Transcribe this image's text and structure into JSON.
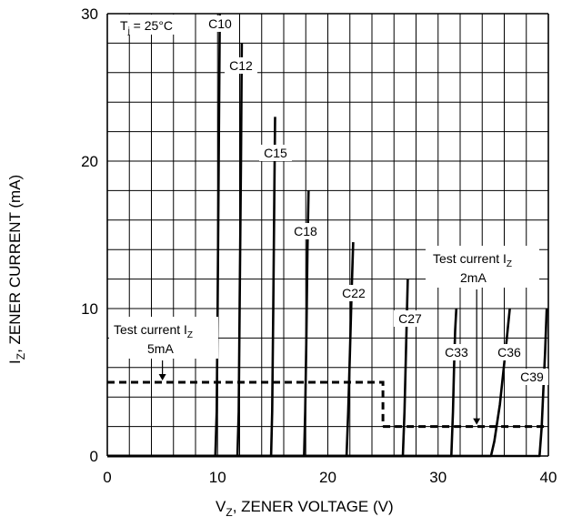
{
  "chart_data": {
    "type": "line",
    "title": "",
    "xlabel": "V",
    "xlabel_sub": "Z",
    "xlabel_rest": ", ZENER VOLTAGE (V)",
    "ylabel": "I",
    "ylabel_sub": "Z",
    "ylabel_rest": ", ZENER CURRENT (mA)",
    "xlim": [
      0,
      40
    ],
    "ylim": [
      0,
      30
    ],
    "x_ticks": [
      0,
      10,
      20,
      30,
      40
    ],
    "y_ticks": [
      0,
      10,
      20,
      30
    ],
    "grid": true,
    "condition": {
      "main": "T",
      "sub": "j",
      "rest": " = 25°C"
    },
    "series": [
      {
        "name": "C10",
        "values": [
          [
            9.8,
            0
          ],
          [
            9.92,
            3
          ],
          [
            10.0,
            10
          ],
          [
            10.1,
            20
          ],
          [
            10.2,
            30
          ]
        ]
      },
      {
        "name": "C12",
        "values": [
          [
            11.8,
            0
          ],
          [
            11.92,
            3
          ],
          [
            12.0,
            10
          ],
          [
            12.12,
            20
          ],
          [
            12.2,
            28
          ]
        ]
      },
      {
        "name": "C15",
        "values": [
          [
            14.85,
            0
          ],
          [
            14.95,
            3
          ],
          [
            15.05,
            10
          ],
          [
            15.15,
            18
          ],
          [
            15.22,
            23
          ]
        ]
      },
      {
        "name": "C18",
        "values": [
          [
            17.85,
            0
          ],
          [
            17.95,
            3
          ],
          [
            18.05,
            8
          ],
          [
            18.15,
            14
          ],
          [
            18.25,
            18
          ]
        ]
      },
      {
        "name": "C22",
        "values": [
          [
            21.7,
            0
          ],
          [
            21.85,
            3
          ],
          [
            22.0,
            7
          ],
          [
            22.15,
            11
          ],
          [
            22.3,
            14.5
          ]
        ]
      },
      {
        "name": "C27",
        "values": [
          [
            26.8,
            0
          ],
          [
            26.95,
            3
          ],
          [
            27.05,
            6
          ],
          [
            27.15,
            9
          ],
          [
            27.25,
            12
          ]
        ]
      },
      {
        "name": "C33",
        "values": [
          [
            31.2,
            0
          ],
          [
            31.35,
            3
          ],
          [
            31.45,
            6
          ],
          [
            31.55,
            8.5
          ],
          [
            31.65,
            10
          ]
        ]
      },
      {
        "name": "C36",
        "values": [
          [
            34.8,
            0
          ],
          [
            35.1,
            1
          ],
          [
            35.6,
            3.5
          ],
          [
            36.1,
            7
          ],
          [
            36.5,
            10
          ]
        ]
      },
      {
        "name": "C39",
        "values": [
          [
            39.2,
            0
          ],
          [
            39.4,
            2
          ],
          [
            39.55,
            4.5
          ],
          [
            39.7,
            7
          ],
          [
            39.85,
            10
          ]
        ]
      }
    ],
    "test_current_5mA": {
      "line1": "Test current I",
      "line1_sub": "Z",
      "line2": "5mA",
      "path": [
        [
          0,
          5
        ],
        [
          25,
          5
        ],
        [
          25,
          2
        ]
      ],
      "arrow_x": 5
    },
    "test_current_2mA": {
      "line1": "Test current I",
      "line1_sub": "Z",
      "line2": "2mA",
      "path": [
        [
          25,
          2
        ],
        [
          40,
          2
        ]
      ],
      "arrow_x": 33.5
    },
    "colors": {
      "curve": "#000000",
      "grid": "#000000",
      "background": "#ffffff"
    }
  }
}
